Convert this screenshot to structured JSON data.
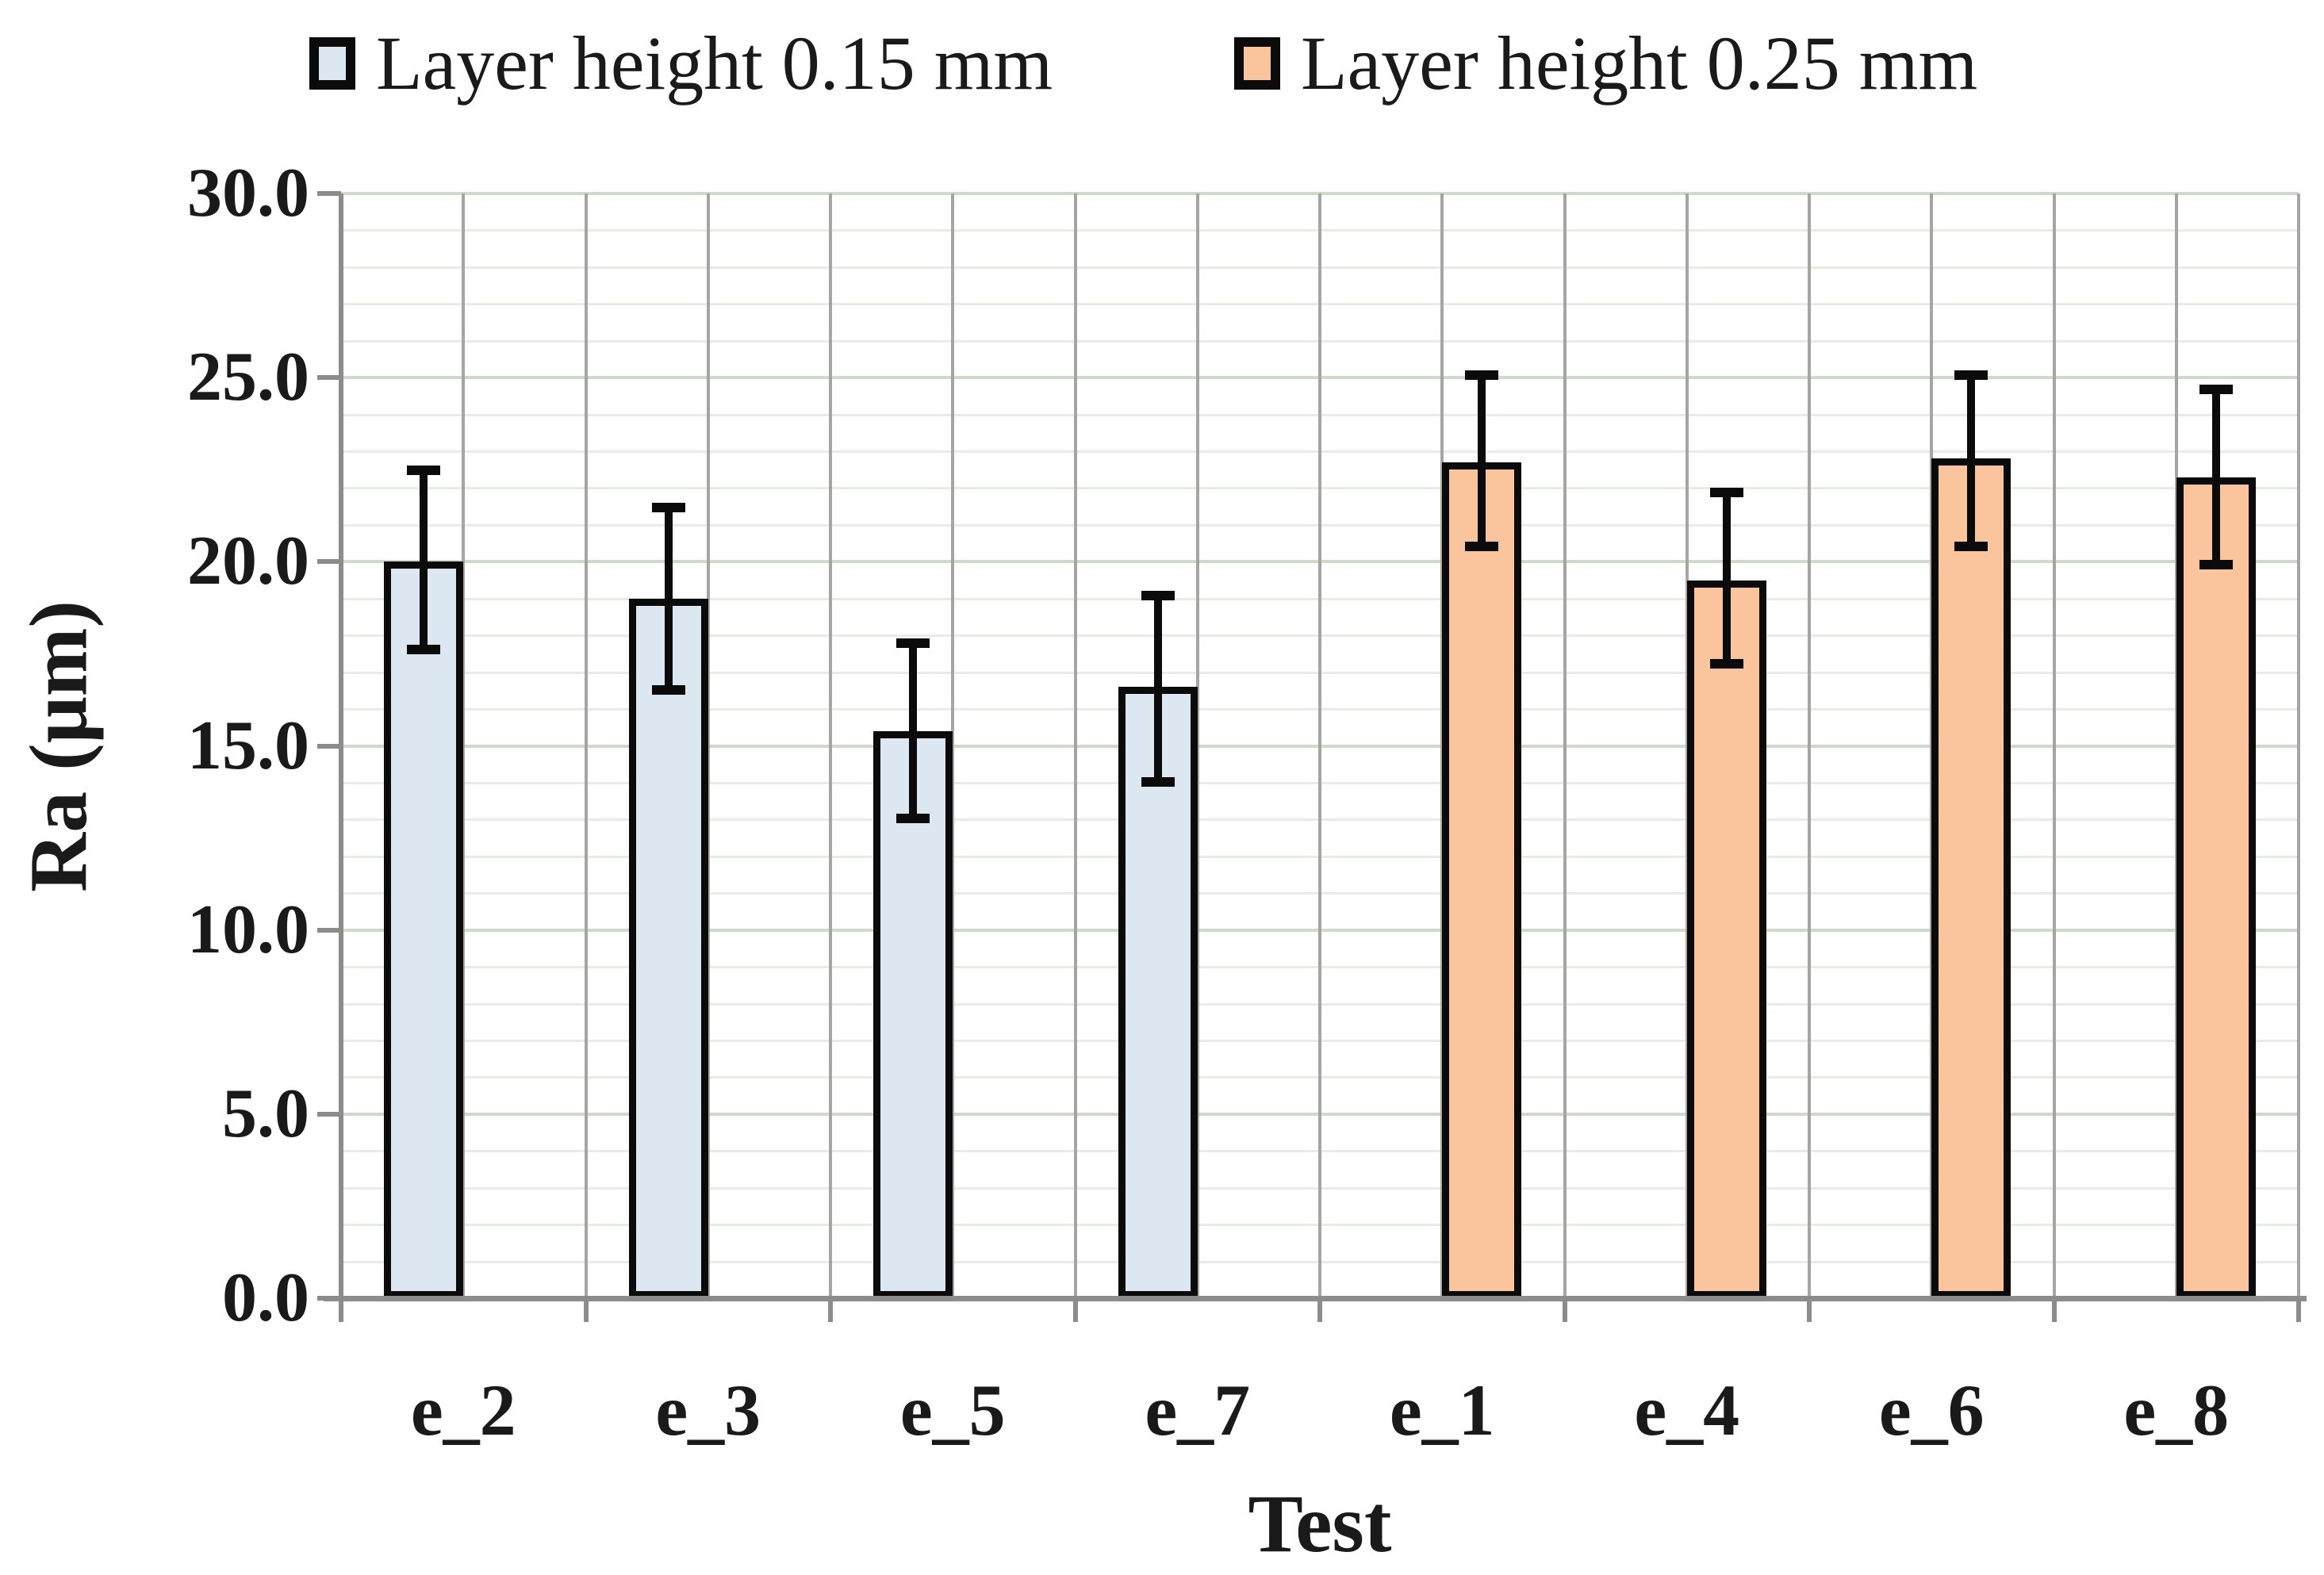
{
  "legend": {
    "items": [
      {
        "label": "Layer height 0.15 mm",
        "color": "#dce7f2"
      },
      {
        "label": "Layer height 0.25 mm",
        "color": "#fac49d"
      }
    ]
  },
  "chart_data": {
    "type": "bar",
    "xlabel": "Test",
    "ylabel": "Ra (μm)",
    "categories": [
      "e_2",
      "e_3",
      "e_5",
      "e_7",
      "e_1",
      "e_4",
      "e_6",
      "e_8"
    ],
    "series": [
      {
        "name": "Layer height 0.15 mm",
        "color": "#dce7f2",
        "values": [
          20.0,
          19.0,
          15.4,
          16.6,
          null,
          null,
          null,
          null
        ],
        "error_up": [
          2.5,
          2.5,
          2.4,
          2.5,
          null,
          null,
          null,
          null
        ],
        "error_down": [
          2.4,
          2.5,
          2.4,
          2.6,
          null,
          null,
          null,
          null
        ]
      },
      {
        "name": "Layer height 0.25 mm",
        "color": "#fac49d",
        "values": [
          null,
          null,
          null,
          null,
          22.7,
          19.5,
          22.8,
          22.3
        ],
        "error_up": [
          null,
          null,
          null,
          null,
          2.4,
          2.4,
          2.3,
          2.4
        ],
        "error_down": [
          null,
          null,
          null,
          null,
          2.3,
          2.3,
          2.4,
          2.4
        ]
      }
    ],
    "ylim": [
      0,
      30
    ],
    "ytick_step": 5,
    "ytick_labels": [
      "0.0",
      "5.0",
      "10.0",
      "15.0",
      "20.0",
      "25.0",
      "30.0"
    ],
    "minor_grid_step": 1,
    "grid": "on",
    "legend_position": "top",
    "colors": {
      "bar_border": "#0b0b0b",
      "error_bar": "#0b0b0b",
      "major_gridline": "#cedbca",
      "minor_gridline": "#e7ede5",
      "vertical_gridline": "#a5a5a5",
      "axis_line": "#8c8c8c",
      "text": "#1a1a1a",
      "background": "#ffffff"
    }
  }
}
